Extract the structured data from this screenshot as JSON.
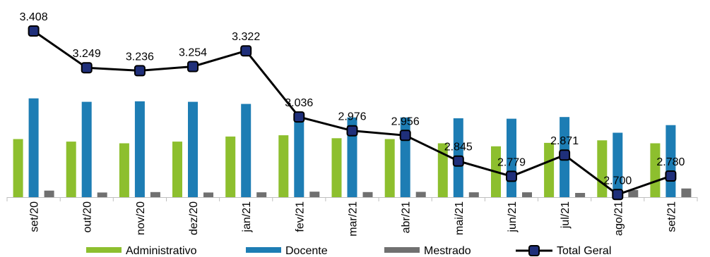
{
  "chart_data": {
    "type": "bar",
    "categories": [
      "set/20",
      "out/20",
      "nov/20",
      "dez/20",
      "jan/21",
      "fev/21",
      "mar/21",
      "abr/21",
      "mai/21",
      "jun/21",
      "jul/21",
      "ago/21",
      "set/21"
    ],
    "series": [
      {
        "name": "Administrativo",
        "type": "bar",
        "color": "#8dbf2e",
        "values": [
          1370,
          1310,
          1270,
          1310,
          1430,
          1460,
          1390,
          1370,
          1270,
          1200,
          1280,
          1340,
          1270
        ]
      },
      {
        "name": "Docente",
        "type": "bar",
        "color": "#1d7db4",
        "values": [
          2330,
          2250,
          2260,
          2250,
          2200,
          1870,
          1880,
          1880,
          1860,
          1850,
          1890,
          1520,
          1700
        ]
      },
      {
        "name": "Mestrado",
        "type": "bar",
        "color": "#707070",
        "values": [
          155,
          110,
          120,
          110,
          115,
          130,
          120,
          125,
          115,
          115,
          100,
          170,
          205
        ]
      },
      {
        "name": "Total Geral",
        "type": "line",
        "color": "#000000",
        "marker_color": "#1f2f7a",
        "values": [
          3.408,
          3.249,
          3.236,
          3.254,
          3.322,
          3.036,
          2.976,
          2.956,
          2.845,
          2.779,
          2.871,
          2.7,
          2.78
        ]
      }
    ],
    "data_labels": [
      "3.408",
      "3.249",
      "3.236",
      "3.254",
      "3.322",
      "3.036",
      "2.976",
      "2.956",
      "2.845",
      "2.779",
      "2.871",
      "2.700",
      "2.780"
    ],
    "legend_position": "bottom",
    "grid": false
  }
}
